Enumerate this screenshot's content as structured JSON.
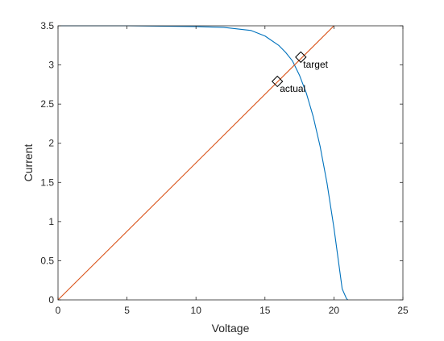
{
  "chart_data": {
    "type": "line",
    "title": "",
    "xlabel": "Voltage",
    "ylabel": "Current",
    "xlim": [
      0,
      25
    ],
    "ylim": [
      0,
      3.5
    ],
    "x_ticks": [
      0,
      5,
      10,
      15,
      20,
      25
    ],
    "y_ticks": [
      0,
      0.5,
      1,
      1.5,
      2,
      2.5,
      3,
      3.5
    ],
    "x_tick_labels": [
      "0",
      "5",
      "10",
      "15",
      "20",
      "25"
    ],
    "y_tick_labels": [
      "0",
      "0.5",
      "1",
      "1.5",
      "2",
      "2.5",
      "3",
      "3.5"
    ],
    "grid": false,
    "series": [
      {
        "color": "#0072BD",
        "x": [
          0,
          5,
          10,
          12,
          14,
          15,
          16,
          16.5,
          17,
          17.5,
          18,
          18.5,
          19,
          19.5,
          20,
          20.3,
          20.6,
          20.9,
          21
        ],
        "y": [
          3.5,
          3.5,
          3.49,
          3.48,
          3.44,
          3.37,
          3.25,
          3.16,
          3.05,
          2.87,
          2.64,
          2.34,
          1.96,
          1.49,
          0.92,
          0.53,
          0.14,
          0.02,
          0
        ]
      },
      {
        "color": "#D95319",
        "x": [
          0,
          20
        ],
        "y": [
          0,
          3.5
        ]
      }
    ],
    "annotations": [
      {
        "text": "target",
        "x": 17.6,
        "y": 3.1
      },
      {
        "text": "actual",
        "x": 15.9,
        "y": 2.79
      }
    ]
  }
}
